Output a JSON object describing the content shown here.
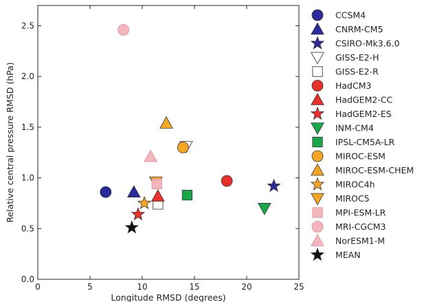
{
  "chart_data": {
    "type": "scatter",
    "xlabel": "Longitude RMSD (degrees)",
    "ylabel": "Relative central pressure RMSD (hPa)",
    "xlim": [
      0,
      25
    ],
    "ylim": [
      0.0,
      2.7
    ],
    "x_ticks": [
      0,
      5,
      10,
      15,
      20,
      25
    ],
    "y_ticks": [
      0.0,
      0.5,
      1.0,
      1.5,
      2.0,
      2.5
    ],
    "x_tick_labels": [
      "0",
      "5",
      "10",
      "15",
      "20",
      "25"
    ],
    "y_tick_labels": [
      "0.0",
      "0.5",
      "1.0",
      "1.5",
      "2.0",
      "2.5"
    ],
    "grid": false,
    "legend_position": "right",
    "series": [
      {
        "name": "CCSM4",
        "marker": "circle",
        "color": "#2b2b9c",
        "x": 6.5,
        "y": 0.86
      },
      {
        "name": "CNRM-CM5",
        "marker": "triangle-up",
        "color": "#2b2b9c",
        "x": 9.2,
        "y": 0.86
      },
      {
        "name": "CSIRO-Mk3.6.0",
        "marker": "star",
        "color": "#2b2b9c",
        "x": 22.6,
        "y": 0.92
      },
      {
        "name": "GISS-E2-H",
        "marker": "triangle-down-open",
        "color": "#777777",
        "x": 14.2,
        "y": 1.31
      },
      {
        "name": "GISS-E2-R",
        "marker": "square-open",
        "color": "#777777",
        "x": 11.5,
        "y": 0.74
      },
      {
        "name": "HadCM3",
        "marker": "circle",
        "color": "#e8312a",
        "x": 18.1,
        "y": 0.97
      },
      {
        "name": "HadGEM2-CC",
        "marker": "triangle-up",
        "color": "#e8312a",
        "x": 11.5,
        "y": 0.82
      },
      {
        "name": "HadGEM2-ES",
        "marker": "star",
        "color": "#e8312a",
        "x": 9.6,
        "y": 0.64
      },
      {
        "name": "INM-CM4",
        "marker": "triangle-down",
        "color": "#1aa64b",
        "x": 21.7,
        "y": 0.7
      },
      {
        "name": "IPSL-CM5A-LR",
        "marker": "square",
        "color": "#1aa64b",
        "x": 14.3,
        "y": 0.83
      },
      {
        "name": "MIROC-ESM",
        "marker": "circle",
        "color": "#f5a623",
        "x": 13.9,
        "y": 1.3
      },
      {
        "name": "MIROC-ESM-CHEM",
        "marker": "triangle-up",
        "color": "#f5a623",
        "x": 12.3,
        "y": 1.54
      },
      {
        "name": "MIROC4h",
        "marker": "star",
        "color": "#f5a623",
        "x": 10.2,
        "y": 0.75
      },
      {
        "name": "MIROC5",
        "marker": "triangle-down",
        "color": "#f5a623",
        "x": 11.3,
        "y": 0.96
      },
      {
        "name": "MPI-ESM-LR",
        "marker": "square",
        "color": "#f4b6bd",
        "x": 11.4,
        "y": 0.94
      },
      {
        "name": "MRI-CGCM3",
        "marker": "circle",
        "color": "#f4b6bd",
        "x": 8.2,
        "y": 2.46
      },
      {
        "name": "NorESM1-M",
        "marker": "triangle-up",
        "color": "#f4b6bd",
        "x": 10.8,
        "y": 1.21
      },
      {
        "name": "MEAN",
        "marker": "star",
        "color": "#111111",
        "x": 9.0,
        "y": 0.51
      }
    ]
  }
}
